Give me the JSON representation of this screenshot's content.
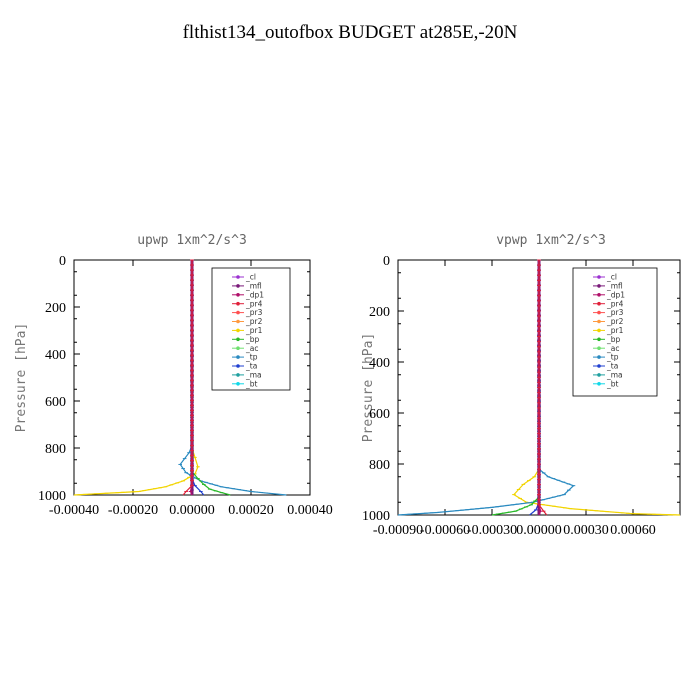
{
  "title": "flthist134_outofbox  BUDGET at285E,-20N",
  "colors": {
    "cl": "#9b30d0",
    "mfl": "#7a1a7a",
    "dp1": "#b0106a",
    "pr4": "#e0203a",
    "pr3": "#ff5050",
    "pr2": "#ff9a40",
    "pr1": "#f2d400",
    "bp": "#28b828",
    "ac": "#70e070",
    "tp": "#2a8ac0",
    "ta": "#2040d0",
    "ma": "#20a0a0",
    "bt": "#10d8e8"
  },
  "chart_data": [
    {
      "type": "line",
      "title": "upwp   1xm^2/s^3",
      "ylabel": "Pressure [hPa]",
      "xlabel": "",
      "xlim": [
        -0.0004,
        0.0004
      ],
      "ylim": [
        1000,
        0
      ],
      "xticks": [
        "-0.00040",
        "-0.00020",
        "0.00000",
        "0.00020",
        "0.00040"
      ],
      "yticks": [
        "0",
        "200",
        "400",
        "600",
        "800",
        "1000"
      ],
      "legend": [
        "_cl",
        "_mfl",
        "_dp1",
        "_pr4",
        "_pr3",
        "_pr2",
        "_pr1",
        "_bp",
        "_ac",
        "_tp",
        "_ta",
        "_ma",
        "_bt"
      ],
      "legend_position": "top-right",
      "series": [
        {
          "name": "_pr1",
          "color_key": "pr1",
          "x": [
            0,
            0,
            1e-05,
            2e-05,
            1e-05,
            -3e-05,
            -9e-05,
            -0.00018,
            -0.0004
          ],
          "y": [
            0,
            800,
            840,
            880,
            910,
            940,
            965,
            985,
            1000
          ]
        },
        {
          "name": "_tp",
          "color_key": "tp",
          "x": [
            0,
            0,
            -1e-05,
            -4e-05,
            -2e-05,
            3e-05,
            0.0001,
            0.0002,
            0.00032
          ],
          "y": [
            0,
            790,
            820,
            870,
            905,
            940,
            965,
            985,
            1000
          ]
        },
        {
          "name": "_bp",
          "color_key": "bp",
          "x": [
            0,
            0,
            2e-05,
            4e-05,
            6e-05,
            0.0001,
            0.00013
          ],
          "y": [
            0,
            900,
            930,
            955,
            975,
            990,
            1000
          ]
        },
        {
          "name": "_ta",
          "color_key": "ta",
          "x": [
            0,
            0,
            1e-05,
            3e-05,
            4e-05
          ],
          "y": [
            0,
            930,
            960,
            985,
            1000
          ]
        },
        {
          "name": "_cl",
          "color_key": "cl",
          "x": [
            0,
            0
          ],
          "y": [
            0,
            1000
          ]
        },
        {
          "name": "_mfl",
          "color_key": "mfl",
          "x": [
            0,
            0
          ],
          "y": [
            0,
            1000
          ]
        },
        {
          "name": "_dp1",
          "color_key": "dp1",
          "x": [
            0,
            0,
            -5e-06,
            0
          ],
          "y": [
            0,
            960,
            985,
            1000
          ]
        },
        {
          "name": "_pr4",
          "color_key": "pr4",
          "x": [
            0,
            0,
            -2e-05,
            -3e-05
          ],
          "y": [
            0,
            960,
            985,
            1000
          ]
        }
      ]
    },
    {
      "type": "line",
      "title": "vpwp   1xm^2/s^3",
      "ylabel": "Pressure [hPa]",
      "xlabel": "",
      "xlim": [
        -0.0009,
        0.0009
      ],
      "ylim": [
        1000,
        0
      ],
      "xticks": [
        "-0.00090",
        "-0.00060",
        "-0.00030",
        "0.00000",
        "0.00030",
        "0.00060"
      ],
      "yticks": [
        "0",
        "200",
        "400",
        "600",
        "800",
        "1000"
      ],
      "legend": [
        "_cl",
        "_mfl",
        "_dp1",
        "_pr4",
        "_pr3",
        "_pr2",
        "_pr1",
        "_bp",
        "_ac",
        "_tp",
        "_ta",
        "_ma",
        "_bt"
      ],
      "legend_position": "top-right",
      "series": [
        {
          "name": "_pr1",
          "color_key": "pr1",
          "x": [
            0,
            0,
            -3e-05,
            -0.0001,
            -0.00016,
            -8e-05,
            0.0002,
            0.0006,
            0.0009
          ],
          "y": [
            0,
            820,
            850,
            880,
            920,
            950,
            975,
            995,
            1000
          ]
        },
        {
          "name": "_tp",
          "color_key": "tp",
          "x": [
            0,
            0,
            6e-05,
            0.00022,
            0.00016,
            -4e-05,
            -0.0003,
            -0.00065,
            -0.0009
          ],
          "y": [
            0,
            820,
            850,
            885,
            920,
            950,
            970,
            990,
            1000
          ]
        },
        {
          "name": "_bp",
          "color_key": "bp",
          "x": [
            0,
            0,
            -5e-05,
            -0.00015,
            -0.0003
          ],
          "y": [
            0,
            930,
            960,
            985,
            1000
          ]
        },
        {
          "name": "_ta",
          "color_key": "ta",
          "x": [
            0,
            0,
            -2e-05,
            -6e-05
          ],
          "y": [
            0,
            950,
            980,
            1000
          ]
        },
        {
          "name": "_cl",
          "color_key": "cl",
          "x": [
            0,
            0
          ],
          "y": [
            0,
            1000
          ]
        },
        {
          "name": "_mfl",
          "color_key": "mfl",
          "x": [
            0,
            0
          ],
          "y": [
            0,
            1000
          ]
        },
        {
          "name": "_dp1",
          "color_key": "dp1",
          "x": [
            0,
            0,
            1e-05,
            0
          ],
          "y": [
            0,
            960,
            985,
            1000
          ]
        },
        {
          "name": "_pr4",
          "color_key": "pr4",
          "x": [
            0,
            0,
            3e-05,
            5e-05
          ],
          "y": [
            0,
            960,
            985,
            1000
          ]
        }
      ]
    }
  ]
}
